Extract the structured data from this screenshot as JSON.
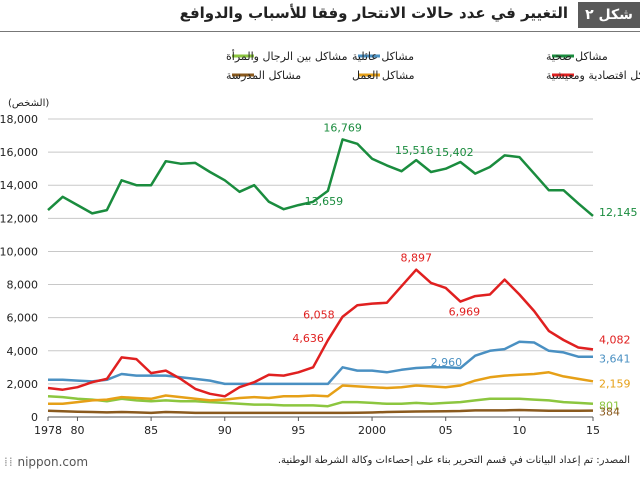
{
  "header": {
    "badge": "شكل ٢",
    "title": "التغيير في عدد حالات الانتحار وفقا للأسباب والدوافع"
  },
  "footer": {
    "logo": "nippon.com",
    "source": "المصدر: تم إعداد البيانات في قسم التحرير بناء على إحصاءات وكالة الشرطة الوطنية."
  },
  "chart_data": {
    "type": "line",
    "title": "التغيير في عدد حالات الانتحار وفقا للأسباب والدوافع",
    "ylabel": "(الشخص)",
    "xlabel": "",
    "xlim": [
      1978,
      2015
    ],
    "ylim": [
      0,
      18000
    ],
    "yticks": [
      0,
      2000,
      4000,
      6000,
      8000,
      10000,
      12000,
      14000,
      16000,
      18000
    ],
    "ytick_labels": [
      "0",
      "2,000",
      "4,000",
      "6,000",
      "8,000",
      "10,000",
      "12,000",
      "14,000",
      "16,000",
      "18,000"
    ],
    "xticks": [
      1978,
      1980,
      1985,
      1990,
      1995,
      2000,
      2005,
      2010,
      2015
    ],
    "xtick_labels": [
      "1978",
      "80",
      "85",
      "90",
      "95",
      "2000",
      "05",
      "10",
      "15"
    ],
    "grid": true,
    "legend_position": "top",
    "x": [
      1978,
      1979,
      1980,
      1981,
      1982,
      1983,
      1984,
      1985,
      1986,
      1987,
      1988,
      1989,
      1990,
      1991,
      1992,
      1993,
      1994,
      1995,
      1996,
      1997,
      1998,
      1999,
      2000,
      2001,
      2002,
      2003,
      2004,
      2005,
      2006,
      2007,
      2008,
      2009,
      2010,
      2011,
      2012,
      2013,
      2014,
      2015
    ],
    "series": [
      {
        "name": "مشاكل صحية",
        "color": "#1a8c3e",
        "values": [
          12500,
          13300,
          12800,
          12300,
          12500,
          14300,
          14000,
          14000,
          15450,
          15300,
          15350,
          14800,
          14300,
          13600,
          14000,
          13000,
          12550,
          12800,
          13000,
          13659,
          16769,
          16500,
          15600,
          15200,
          14850,
          15516,
          14800,
          15000,
          15402,
          14700,
          15100,
          15800,
          15700,
          14700,
          13700,
          13700,
          12900,
          12145
        ]
      },
      {
        "name": "مشاكل اقتصادية ومعيشية",
        "color": "#e02020",
        "values": [
          1750,
          1650,
          1800,
          2100,
          2300,
          3600,
          3500,
          2650,
          2800,
          2300,
          1700,
          1400,
          1250,
          1800,
          2100,
          2550,
          2500,
          2700,
          3000,
          4636,
          6058,
          6750,
          6850,
          6900,
          7900,
          8897,
          8100,
          7800,
          6969,
          7300,
          7400,
          8300,
          7400,
          6400,
          5200,
          4650,
          4200,
          4082
        ]
      },
      {
        "name": "مشاكل عائلية",
        "color": "#4a90c2",
        "values": [
          2250,
          2250,
          2200,
          2150,
          2250,
          2600,
          2500,
          2500,
          2500,
          2400,
          2300,
          2200,
          2000,
          2000,
          2000,
          2000,
          2000,
          2000,
          2000,
          2000,
          3000,
          2800,
          2800,
          2700,
          2850,
          2960,
          3000,
          3000,
          2960,
          3700,
          4000,
          4100,
          4550,
          4500,
          4000,
          3900,
          3641,
          3641
        ]
      },
      {
        "name": "مشاكل العمل",
        "color": "#e6a017",
        "values": [
          800,
          800,
          900,
          1000,
          1050,
          1200,
          1150,
          1100,
          1300,
          1200,
          1100,
          1000,
          1050,
          1150,
          1200,
          1150,
          1250,
          1250,
          1300,
          1250,
          1900,
          1850,
          1800,
          1750,
          1800,
          1900,
          1850,
          1800,
          1900,
          2200,
          2400,
          2500,
          2550,
          2600,
          2700,
          2450,
          2300,
          2159
        ]
      },
      {
        "name": "مشاكل بين الرجال والمرأة",
        "color": "#8cc63f",
        "values": [
          1250,
          1200,
          1100,
          1050,
          950,
          1100,
          1000,
          950,
          1000,
          950,
          950,
          900,
          850,
          800,
          750,
          750,
          700,
          700,
          700,
          650,
          900,
          900,
          850,
          800,
          800,
          850,
          800,
          850,
          900,
          1000,
          1100,
          1100,
          1100,
          1050,
          1000,
          900,
          850,
          801
        ]
      },
      {
        "name": "مشاكل المدرسة",
        "color": "#8a5a1e",
        "values": [
          380,
          350,
          320,
          300,
          280,
          300,
          280,
          250,
          300,
          280,
          250,
          250,
          250,
          250,
          250,
          250,
          250,
          250,
          250,
          250,
          250,
          260,
          270,
          300,
          320,
          330,
          340,
          350,
          360,
          400,
          400,
          400,
          420,
          400,
          380,
          380,
          380,
          384
        ]
      }
    ],
    "annotations": [
      {
        "text": "16,769",
        "series": 0,
        "x": 1998
      },
      {
        "text": "13,659",
        "series": 0,
        "x": 1997
      },
      {
        "text": "15,516",
        "series": 0,
        "x": 2003
      },
      {
        "text": "15,402",
        "series": 0,
        "x": 2006
      },
      {
        "text": "12,145",
        "series": 0,
        "x": 2015
      },
      {
        "text": "8,897",
        "series": 1,
        "x": 2003
      },
      {
        "text": "6,058",
        "series": 1,
        "x": 1998
      },
      {
        "text": "4,636",
        "series": 1,
        "x": 1997
      },
      {
        "text": "6,969",
        "series": 1,
        "x": 2006
      },
      {
        "text": "4,082",
        "series": 1,
        "x": 2015
      },
      {
        "text": "2,960",
        "series": 2,
        "x": 2006
      },
      {
        "text": "3,641",
        "series": 2,
        "x": 2015
      },
      {
        "text": "2,159",
        "series": 3,
        "x": 2015
      },
      {
        "text": "801",
        "series": 4,
        "x": 2015
      },
      {
        "text": "384",
        "series": 5,
        "x": 2015
      }
    ]
  }
}
